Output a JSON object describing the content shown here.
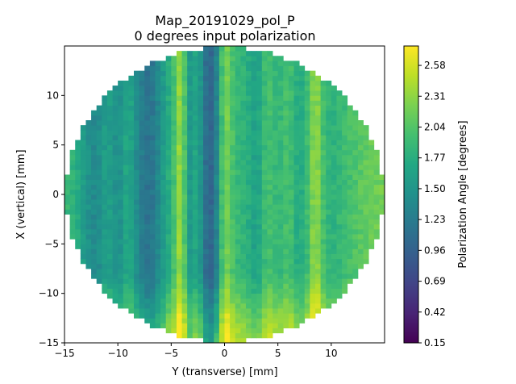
{
  "chart_data": {
    "type": "heatmap",
    "title_line1": "Map_20191029_pol_P",
    "title_line2": "0 degrees input polarization",
    "xlabel": "Y (transverse) [mm]",
    "ylabel": "X (vertical) [mm]",
    "colorbar_label": "Polarization Angle [degrees]",
    "xlim": [
      -15,
      15
    ],
    "ylim": [
      -15,
      15
    ],
    "x_ticks": [
      -15,
      -10,
      -5,
      0,
      5,
      10
    ],
    "y_ticks": [
      -15,
      -10,
      -5,
      0,
      5,
      10
    ],
    "x_tick_labels": [
      "−15",
      "−10",
      "−5",
      "0",
      "5",
      "10"
    ],
    "y_tick_labels": [
      "−15",
      "−10",
      "−5",
      "0",
      "5",
      "10"
    ],
    "colorbar_range": [
      0.15,
      2.75
    ],
    "colorbar_ticks": [
      0.15,
      0.42,
      0.69,
      0.96,
      1.23,
      1.5,
      1.77,
      2.04,
      2.31,
      2.58
    ],
    "colorbar_tick_labels": [
      "0.15",
      "0.42",
      "0.69",
      "0.96",
      "1.23",
      "1.50",
      "1.77",
      "2.04",
      "2.31",
      "2.58"
    ],
    "colormap": "viridis",
    "map_radius_mm": 14.9,
    "grid_step_mm": 0.5,
    "column_profile_y_mm": [
      -15,
      -14,
      -13,
      -12,
      -11,
      -10,
      -9,
      -8,
      -7,
      -6,
      -5,
      -4.5,
      -4,
      -3.5,
      -3,
      -2.5,
      -2,
      -1.5,
      -1,
      -0.5,
      0,
      1,
      2,
      3,
      4,
      5,
      6,
      7,
      8,
      8.5,
      9,
      9.5,
      10,
      11,
      12,
      13,
      14,
      15
    ],
    "column_profile_value": [
      1.9,
      1.8,
      1.5,
      1.35,
      1.65,
      1.4,
      1.75,
      1.3,
      1.1,
      1.45,
      1.85,
      2.1,
      2.55,
      1.5,
      1.6,
      1.75,
      1.25,
      0.95,
      1.05,
      1.6,
      2.3,
      1.9,
      1.8,
      1.6,
      2.0,
      1.85,
      2.0,
      1.7,
      2.0,
      2.45,
      2.05,
      1.9,
      1.8,
      1.9,
      2.0,
      2.1,
      2.15,
      2.2
    ],
    "vertical_trend": "values increase toward the bottom of the map (X < -8 mm), reaching ~2.3-2.7 degrees"
  }
}
